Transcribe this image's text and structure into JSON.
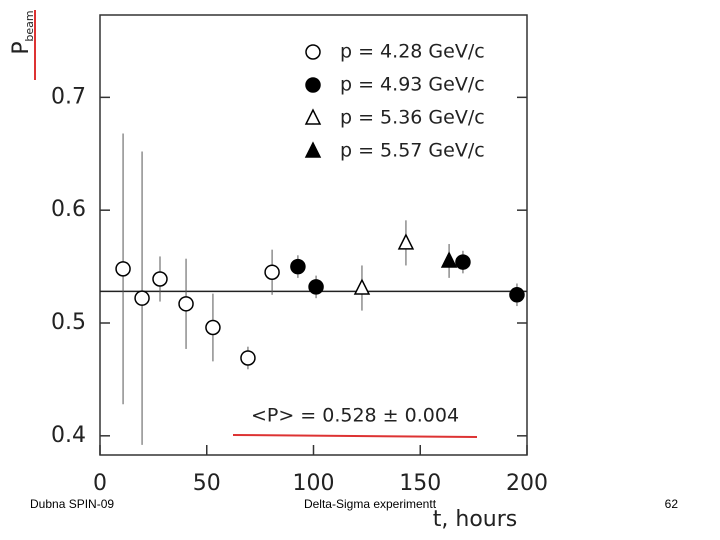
{
  "chart_data": {
    "type": "scatter",
    "y_label": "P",
    "y_label_sub": "beam",
    "x_label": "t, hours",
    "xlim": [
      0,
      200
    ],
    "xticks": [
      0,
      50,
      100,
      150,
      200
    ],
    "ylim": [
      0.383,
      0.773
    ],
    "yticks": [
      0.4,
      0.5,
      0.6,
      0.7
    ],
    "series": [
      {
        "name": "p = 4.28 GeV/c",
        "color": "#000000",
        "marker": "circle",
        "filled": false,
        "x": [
          10.8,
          19.7,
          28.1,
          40.3,
          52.9,
          69.3,
          80.6
        ],
        "values": [
          0.548,
          0.522,
          0.539,
          0.517,
          0.496,
          0.469,
          0.545
        ],
        "errors": [
          0.12,
          0.13,
          0.02,
          0.04,
          0.03,
          0.01,
          0.02
        ]
      },
      {
        "name": "p = 4.93 GeV/c",
        "color": "#000000",
        "marker": "circle",
        "filled": true,
        "x": [
          92.7,
          101.2,
          170.0,
          195.3
        ],
        "values": [
          0.55,
          0.532,
          0.554,
          0.525
        ],
        "errors": [
          0.01,
          0.01,
          0.01,
          0.01
        ]
      },
      {
        "name": "p = 5.36 GeV/c",
        "color": "#000000",
        "marker": "triangle",
        "filled": false,
        "x": [
          122.7,
          143.3
        ],
        "values": [
          0.531,
          0.571
        ],
        "errors": [
          0.02,
          0.02
        ]
      },
      {
        "name": "p = 5.57 GeV/c",
        "color": "#000000",
        "marker": "triangle",
        "filled": true,
        "x": [
          163.5
        ],
        "values": [
          0.555
        ],
        "errors": [
          0.015
        ]
      }
    ],
    "reference_line": {
      "value": 0.528,
      "label": "<P> = 0.528 ± 0.004"
    }
  },
  "footer": {
    "left": "Dubna SPIN-09",
    "center": "Delta-Sigma experimentt",
    "page": "62"
  }
}
